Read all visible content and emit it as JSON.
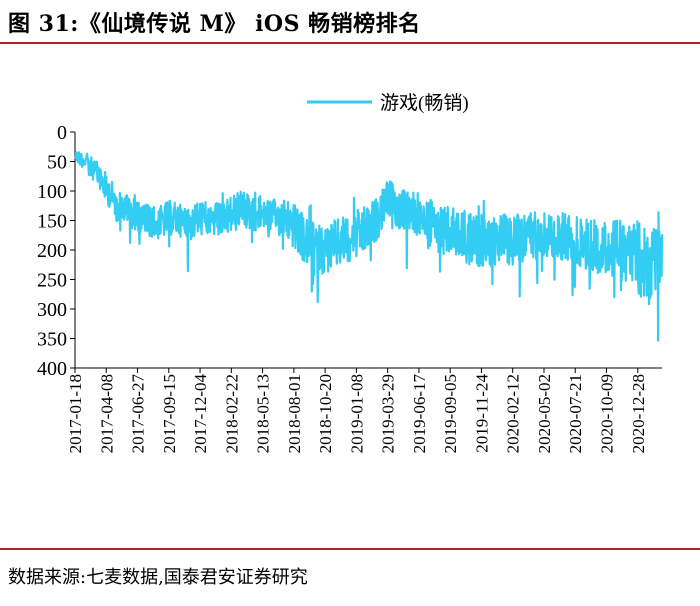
{
  "header": {
    "title": "图 31:《仙境传说 M》  iOS 畅销榜排名"
  },
  "footer": {
    "source": "数据来源:七麦数据,国泰君安证券研究"
  },
  "chart_data": {
    "type": "line",
    "title": "",
    "xlabel": "",
    "ylabel": "",
    "y_inverted": true,
    "ylim": [
      0,
      400
    ],
    "y_ticks": [
      0,
      50,
      100,
      150,
      200,
      250,
      300,
      350,
      400
    ],
    "x_start": "2017-01-18",
    "x_end": "2021-02-28",
    "x_tick_labels": [
      "2017-01-18",
      "2017-04-08",
      "2017-06-27",
      "2017-09-15",
      "2017-12-04",
      "2018-02-22",
      "2018-05-13",
      "2018-08-01",
      "2018-10-20",
      "2019-01-08",
      "2019-03-29",
      "2019-06-17",
      "2019-09-05",
      "2019-11-24",
      "2020-02-12",
      "2020-05-02",
      "2020-07-21",
      "2020-10-09",
      "2020-12-28"
    ],
    "legend": {
      "position": "top-right",
      "entries": [
        "游戏(畅销)"
      ]
    },
    "color": "#33ccf2",
    "series": [
      {
        "name": "游戏(畅销)",
        "x": [
          "2017-01-18",
          "2017-02-15",
          "2017-03-15",
          "2017-04-08",
          "2017-05-10",
          "2017-06-05",
          "2017-06-27",
          "2017-07-20",
          "2017-08-20",
          "2017-09-15",
          "2017-10-15",
          "2017-11-10",
          "2017-12-04",
          "2018-01-05",
          "2018-02-01",
          "2018-02-22",
          "2018-03-25",
          "2018-04-20",
          "2018-05-13",
          "2018-06-15",
          "2018-07-10",
          "2018-08-01",
          "2018-08-30",
          "2018-09-25",
          "2018-10-20",
          "2018-11-20",
          "2018-12-15",
          "2019-01-08",
          "2019-02-05",
          "2019-03-05",
          "2019-03-29",
          "2019-04-25",
          "2019-05-20",
          "2019-06-17",
          "2019-07-15",
          "2019-08-10",
          "2019-09-05",
          "2019-10-05",
          "2019-10-30",
          "2019-11-24",
          "2019-12-20",
          "2020-01-15",
          "2020-02-12",
          "2020-03-10",
          "2020-04-05",
          "2020-05-02",
          "2020-05-30",
          "2020-06-25",
          "2020-07-21",
          "2020-08-18",
          "2020-09-15",
          "2020-10-09",
          "2020-11-05",
          "2020-12-01",
          "2020-12-28",
          "2021-01-25",
          "2021-02-28"
        ],
        "values": [
          40,
          50,
          70,
          95,
          125,
          135,
          140,
          150,
          155,
          145,
          150,
          155,
          145,
          150,
          150,
          140,
          130,
          140,
          135,
          145,
          145,
          160,
          185,
          195,
          200,
          190,
          180,
          175,
          165,
          145,
          110,
          130,
          135,
          140,
          155,
          165,
          170,
          175,
          180,
          185,
          190,
          180,
          185,
          180,
          175,
          170,
          180,
          175,
          185,
          190,
          195,
          195,
          200,
          205,
          215,
          230,
          210
        ],
        "band": [
          20,
          30,
          40,
          50,
          55,
          55,
          55,
          55,
          55,
          60,
          55,
          60,
          60,
          60,
          60,
          65,
          65,
          60,
          55,
          60,
          70,
          80,
          80,
          80,
          85,
          85,
          80,
          85,
          80,
          70,
          60,
          70,
          70,
          75,
          80,
          80,
          85,
          90,
          90,
          90,
          85,
          85,
          85,
          90,
          90,
          80,
          80,
          85,
          85,
          90,
          90,
          90,
          100,
          110,
          130,
          120,
          110
        ]
      }
    ]
  }
}
